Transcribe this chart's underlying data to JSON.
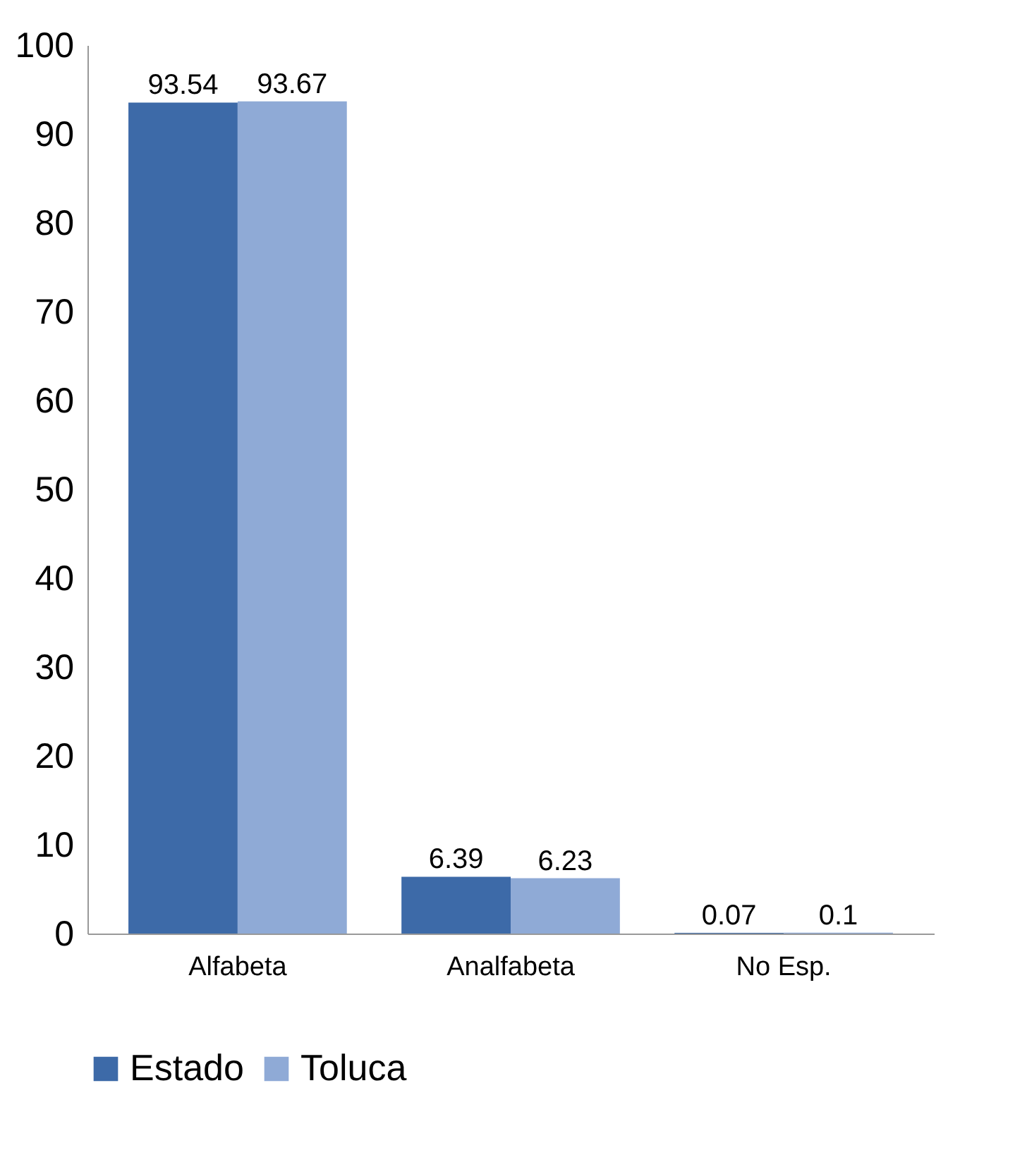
{
  "chart_data": {
    "type": "bar",
    "categories": [
      "Alfabeta",
      "Analfabeta",
      "No Esp."
    ],
    "series": [
      {
        "name": "Estado",
        "color": "#3d6aa8",
        "values": [
          93.54,
          6.39,
          0.07
        ]
      },
      {
        "name": "Toluca",
        "color": "#8faad6",
        "values": [
          93.67,
          6.23,
          0.1
        ]
      }
    ],
    "ylim": [
      0,
      100
    ],
    "yticks": [
      0,
      10,
      20,
      30,
      40,
      50,
      60,
      70,
      80,
      90,
      100
    ],
    "grid": false,
    "legend": "bottom",
    "data_labels": true
  }
}
